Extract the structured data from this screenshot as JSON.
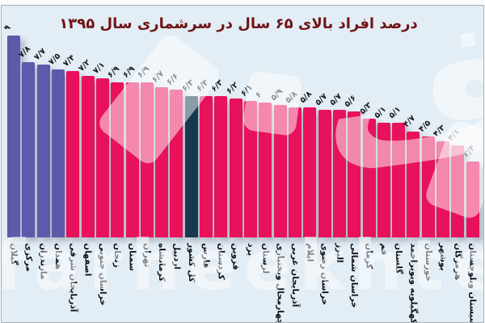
{
  "title": "درصد افراد بالای ۶۵ سال در سرشماری سال ۱۳۹۵",
  "watermark": {
    "text": "farheekhtegan",
    "logo_glyph": "ف"
  },
  "colors": {
    "background": "#e3edf5",
    "bar_default": "#e8115b",
    "bar_highlight": "#5d5aab",
    "bar_national": "#17384f",
    "title_color": "#701416",
    "label_color": "#17181c"
  },
  "chart_data": {
    "type": "bar",
    "title": "درصد افراد بالای ۶۵ سال در سرشماری سال ۱۳۹۵",
    "xlabel": "",
    "ylabel": "",
    "ylim": [
      0,
      9
    ],
    "grid": false,
    "legend": "none",
    "categories": [
      "گیلان",
      "مرکزی",
      "مازندران",
      "همدان",
      "آذربایجان شرقی",
      "اصفهان",
      "خراسان جنوبی",
      "زنجان",
      "سمنان",
      "تهران",
      "کرمانشاه",
      "اردبیل",
      "کل کشور",
      "فارس",
      "کردستان",
      "قزوین",
      "یزد",
      "لرستان",
      "چهارمحال وبختیاری",
      "آذربایجان غربی",
      "ایلام",
      "خراسان رضوی",
      "البرز",
      "خراسان شمالی",
      "کرمان",
      "قم",
      "گلستان",
      "کهگیلویه وبویراحمد",
      "خوزستان",
      "بوشهر",
      "هرمزگان",
      "سیستان وبلوچستان"
    ],
    "values": [
      9,
      7.8,
      7.7,
      7.5,
      7.4,
      7.2,
      7.1,
      6.9,
      6.9,
      6.9,
      6.7,
      6.6,
      6.3,
      6.3,
      6.3,
      6.2,
      6.1,
      6,
      5.9,
      5.8,
      5.8,
      5.7,
      5.7,
      5.6,
      5.3,
      5.1,
      5.1,
      4.7,
      4.5,
      4.3,
      4.1,
      3.4
    ],
    "value_labels": [
      "۹",
      "۷/۸",
      "۷/۷",
      "۷/۵",
      "۷/۴",
      "۷/۲",
      "۷/۱",
      "۶/۹",
      "۶/۹",
      "۶/۹",
      "۶/۷",
      "۶/۶",
      "۶/۳",
      "۶/۳",
      "۶/۳",
      "۶/۲",
      "۶/۱",
      "۶",
      "۵/۹",
      "۵/۸",
      "۵/۸",
      "۵/۷",
      "۵/۷",
      "۵/۶",
      "۵/۳",
      "۵/۱",
      "۵/۱",
      "۴/۷",
      "۴/۵",
      "۴/۳",
      "۴/۱",
      "۳/۴"
    ],
    "bar_roles": [
      "highlight",
      "highlight",
      "highlight",
      "highlight",
      "default",
      "default",
      "default",
      "default",
      "default",
      "default",
      "default",
      "default",
      "national",
      "default",
      "default",
      "default",
      "default",
      "default",
      "default",
      "default",
      "default",
      "default",
      "default",
      "default",
      "default",
      "default",
      "default",
      "default",
      "default",
      "default",
      "default",
      "default"
    ]
  }
}
